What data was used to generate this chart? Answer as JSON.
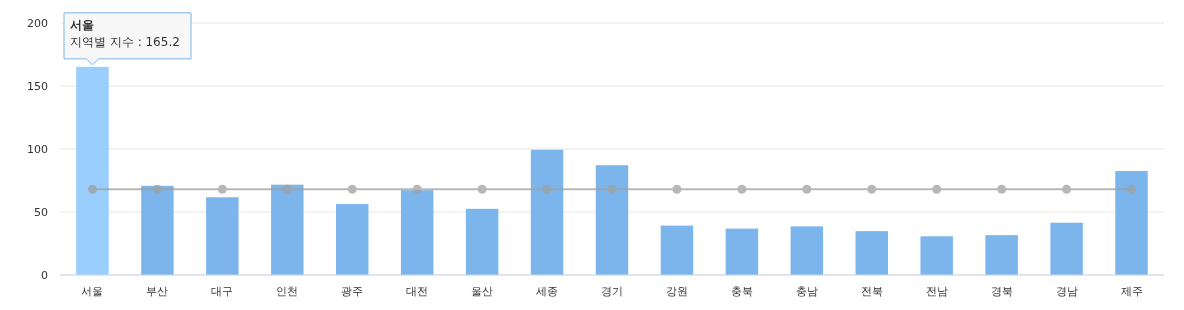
{
  "chart_data": {
    "type": "bar",
    "categories": [
      "서울",
      "부산",
      "대구",
      "인천",
      "광주",
      "대전",
      "울산",
      "세종",
      "경기",
      "강원",
      "충북",
      "충남",
      "전북",
      "전남",
      "경북",
      "경남",
      "제주"
    ],
    "series": [
      {
        "colors": [
          "#99ceff",
          "#7cb5ec",
          "#7cb5ec",
          "#7cb5ec",
          "#7cb5ec",
          "#7cb5ec",
          "#7cb5ec",
          "#7cb5ec",
          "#7cb5ec",
          "#7cb5ec",
          "#7cb5ec",
          "#7cb5ec",
          "#7cb5ec",
          "#7cb5ec",
          "#7cb5ec",
          "#7cb5ec",
          "#7cb5ec"
        ],
        "values": [
          165.2,
          70.8,
          61.7,
          71.7,
          56.3,
          67.3,
          52.5,
          99.4,
          87.1,
          39.2,
          36.8,
          38.6,
          34.8,
          30.7,
          31.6,
          41.5,
          82.5
        ]
      },
      {
        "type": "line",
        "color": "#a0a0a0",
        "marker": "circle",
        "values": [
          68.1,
          68.1,
          68.1,
          68.1,
          68.1,
          68.1,
          68.1,
          68.1,
          68.1,
          68.1,
          68.1,
          68.1,
          68.1,
          68.1,
          68.1,
          68.1,
          68.1
        ]
      }
    ],
    "ylim": [
      0,
      200
    ],
    "yticks": [
      0,
      50,
      100,
      150,
      200
    ],
    "grid": "y",
    "annotations": [
      {
        "text": "서울\n지역별 지수 : 165.2",
        "x": "서울",
        "y": 165.2
      }
    ]
  }
}
